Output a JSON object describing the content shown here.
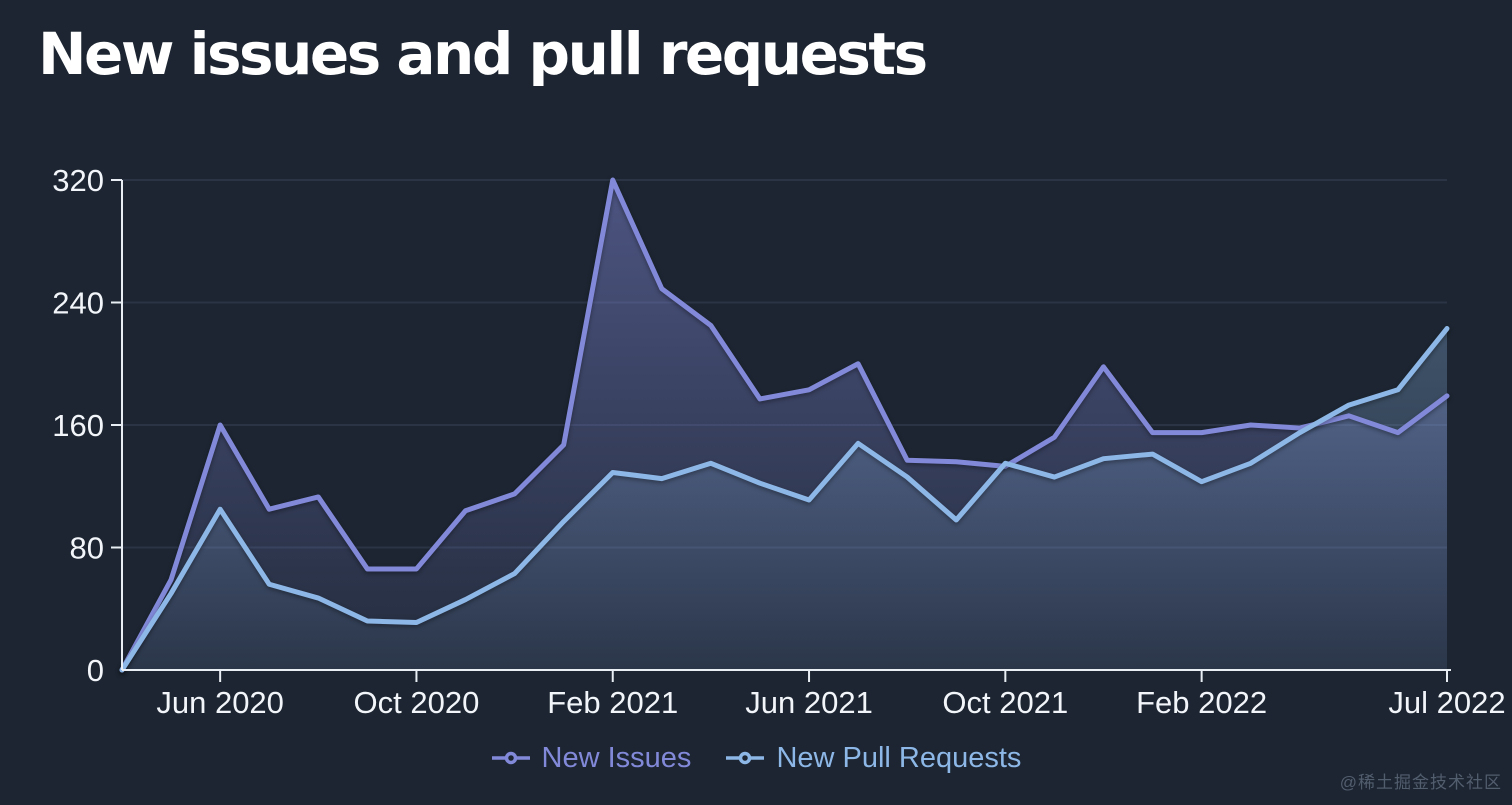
{
  "page": {
    "title": "New issues and pull requests",
    "watermark": "@稀土掘金技术社区"
  },
  "colors": {
    "background": "#1c2531",
    "axis": "#e9eef4",
    "axis_label": "#f2f5f9",
    "gridline": "#2a3445",
    "issues_accent": "#8289d9",
    "prs_accent": "#8db7e6",
    "watermark": "#525d6e"
  },
  "chart_data": {
    "type": "area",
    "title": "New issues and pull requests",
    "xlabel": "",
    "ylabel": "",
    "ylim": [
      0,
      320
    ],
    "y_ticks": [
      0,
      80,
      160,
      240,
      320
    ],
    "grid": "horizontal-only",
    "legend_position": "bottom-center",
    "categories": [
      "Apr 2020",
      "May 2020",
      "Jun 2020",
      "Jul 2020",
      "Aug 2020",
      "Sep 2020",
      "Oct 2020",
      "Nov 2020",
      "Dec 2020",
      "Jan 2021",
      "Feb 2021",
      "Mar 2021",
      "Apr 2021",
      "May 2021",
      "Jun 2021",
      "Jul 2021",
      "Aug 2021",
      "Sep 2021",
      "Oct 2021",
      "Nov 2021",
      "Dec 2021",
      "Jan 2022",
      "Feb 2022",
      "Mar 2022",
      "Apr 2022",
      "May 2022",
      "Jun 2022",
      "Jul 2022"
    ],
    "x_ticks": [
      {
        "index": 2,
        "label": "Jun 2020"
      },
      {
        "index": 6,
        "label": "Oct 2020"
      },
      {
        "index": 10,
        "label": "Feb 2021"
      },
      {
        "index": 14,
        "label": "Jun 2021"
      },
      {
        "index": 18,
        "label": "Oct 2021"
      },
      {
        "index": 22,
        "label": "Feb 2022"
      },
      {
        "index": 27,
        "label": "Jul 2022"
      }
    ],
    "series": [
      {
        "name": "New Issues",
        "color": "#8289d9",
        "values": [
          0,
          59,
          160,
          105,
          113,
          66,
          66,
          104,
          115,
          147,
          320,
          249,
          225,
          177,
          183,
          200,
          137,
          136,
          133,
          152,
          198,
          155,
          155,
          160,
          158,
          166,
          155,
          179
        ]
      },
      {
        "name": "New Pull Requests",
        "color": "#8db7e6",
        "values": [
          0,
          50,
          105,
          56,
          47,
          32,
          31,
          46,
          63,
          97,
          129,
          125,
          135,
          122,
          111,
          148,
          126,
          98,
          135,
          126,
          138,
          141,
          123,
          135,
          155,
          173,
          183,
          223
        ]
      }
    ]
  }
}
